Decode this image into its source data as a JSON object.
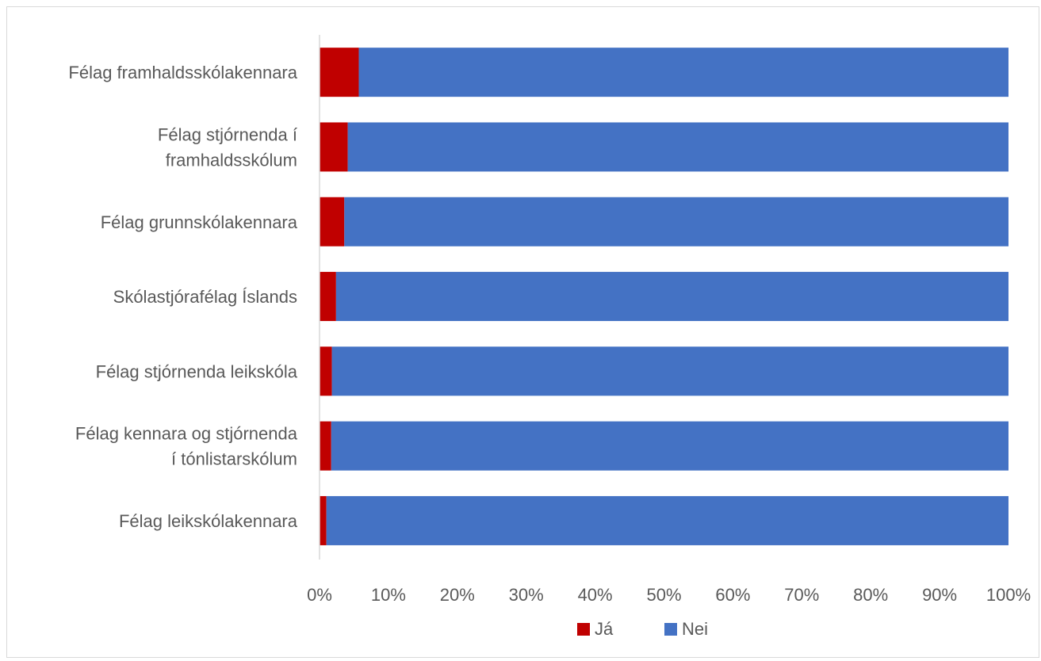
{
  "chart_data": {
    "type": "bar",
    "orientation": "horizontal",
    "stacked": "percent",
    "categories": [
      [
        "Félag framhaldsskólakennara"
      ],
      [
        "Félag stjórnenda í",
        "framhaldsskólum"
      ],
      [
        "Félag grunnskólakennara"
      ],
      [
        "Skólastjórafélag Íslands"
      ],
      [
        "Félag stjórnenda leikskóla"
      ],
      [
        "Félag kennara og stjórnenda",
        "í tónlistarskólum"
      ],
      [
        "Félag leikskólakennara"
      ]
    ],
    "series": [
      {
        "name": "Já",
        "color": "#c00000",
        "values": [
          5.7,
          4.1,
          3.6,
          2.4,
          1.8,
          1.7,
          1.0
        ]
      },
      {
        "name": "Nei",
        "color": "#4472c4",
        "values": [
          94.3,
          95.9,
          96.4,
          97.6,
          98.2,
          98.3,
          99.0
        ]
      }
    ],
    "xlim": [
      0,
      100
    ],
    "xticks": [
      "0%",
      "10%",
      "20%",
      "30%",
      "40%",
      "50%",
      "60%",
      "70%",
      "80%",
      "90%",
      "100%"
    ],
    "legend": {
      "position": "bottom"
    },
    "grid": false
  }
}
